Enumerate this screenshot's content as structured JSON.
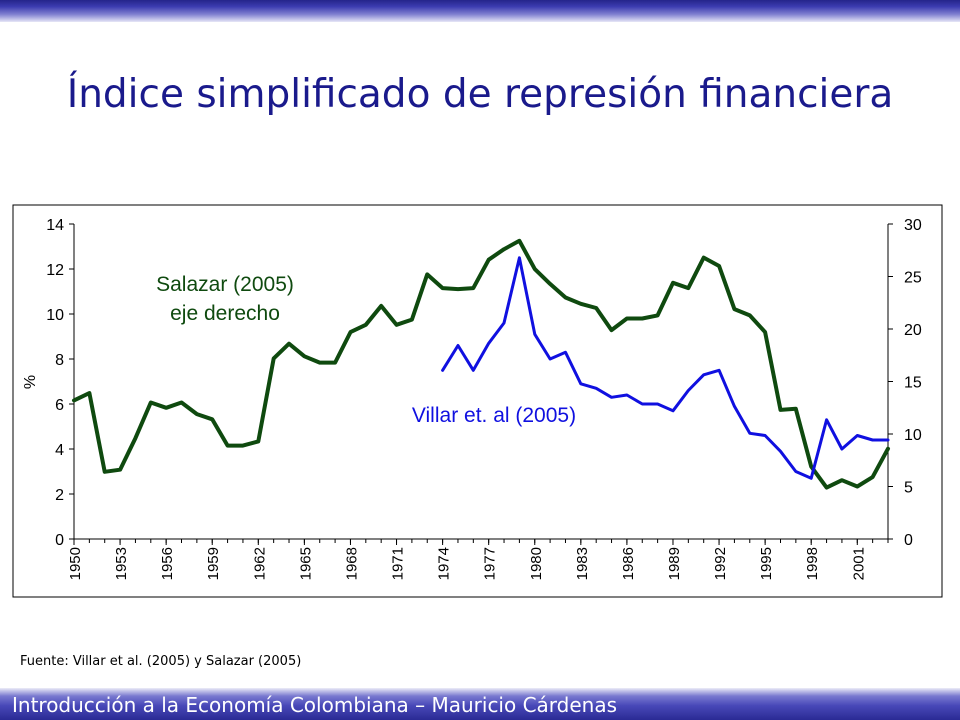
{
  "slide": {
    "title": "Índice simplificado de represión financiera",
    "source": "Fuente: Villar et al. (2005) y Salazar (2005)",
    "footer": "Introducción a la Economía Colombiana – Mauricio Cárdenas"
  },
  "colors": {
    "title": "#1a1a8c",
    "band_dark": "#2a2a94",
    "salazar_series": "#0f4a0f",
    "villar_series": "#1010e0"
  },
  "chart_data": {
    "type": "line",
    "xlabel": "",
    "ylabel": "%",
    "y_left_lim": [
      0,
      14
    ],
    "y_left_ticks": [
      0,
      2,
      4,
      6,
      8,
      10,
      12,
      14
    ],
    "y_right_lim": [
      0,
      30
    ],
    "y_right_ticks": [
      0,
      5,
      10,
      15,
      20,
      25,
      30
    ],
    "x_range": [
      1950,
      2003
    ],
    "x_ticks": [
      1950,
      1953,
      1956,
      1959,
      1962,
      1965,
      1968,
      1971,
      1974,
      1977,
      1980,
      1983,
      1986,
      1989,
      1992,
      1995,
      1998,
      2001
    ],
    "grid": false,
    "series": [
      {
        "name": "Salazar (2005) eje derecho",
        "label_lines": [
          "Salazar (2005)",
          "eje derecho"
        ],
        "axis": "right",
        "color": "#0f4a0f",
        "x": [
          1950,
          1951,
          1952,
          1953,
          1954,
          1955,
          1956,
          1957,
          1958,
          1959,
          1960,
          1961,
          1962,
          1963,
          1964,
          1965,
          1966,
          1967,
          1968,
          1969,
          1970,
          1971,
          1972,
          1973,
          1974,
          1975,
          1976,
          1977,
          1978,
          1979,
          1980,
          1981,
          1982,
          1983,
          1984,
          1985,
          1986,
          1987,
          1988,
          1989,
          1990,
          1991,
          1992,
          1993,
          1994,
          1995,
          1996,
          1997,
          1998,
          1999,
          2000,
          2001,
          2002,
          2003
        ],
        "values": [
          13.2,
          13.9,
          6.4,
          6.6,
          9.6,
          13.0,
          12.5,
          13.0,
          11.9,
          11.4,
          8.9,
          8.9,
          9.3,
          17.2,
          18.6,
          17.4,
          16.8,
          16.8,
          19.7,
          20.4,
          22.2,
          20.4,
          20.9,
          25.2,
          23.9,
          23.8,
          23.9,
          26.6,
          27.6,
          28.4,
          25.7,
          24.3,
          23.0,
          22.4,
          22.0,
          19.9,
          21.0,
          21.0,
          21.3,
          24.4,
          23.9,
          26.8,
          26.0,
          21.9,
          21.3,
          19.7,
          12.3,
          12.4,
          6.9,
          4.9,
          5.6,
          5.0,
          5.9,
          8.6
        ]
      },
      {
        "name": "Villar et. al (2005)",
        "axis": "left",
        "color": "#1010e0",
        "x": [
          1974,
          1975,
          1976,
          1977,
          1978,
          1979,
          1980,
          1981,
          1982,
          1983,
          1984,
          1985,
          1986,
          1987,
          1988,
          1989,
          1990,
          1991,
          1992,
          1993,
          1994,
          1995,
          1996,
          1997,
          1998,
          1999,
          2000,
          2001,
          2002,
          2003
        ],
        "values": [
          7.5,
          8.6,
          7.5,
          8.7,
          9.6,
          12.5,
          9.1,
          8.0,
          8.3,
          6.9,
          6.7,
          6.3,
          6.4,
          6.0,
          6.0,
          5.7,
          6.6,
          7.3,
          7.5,
          5.9,
          4.7,
          4.6,
          3.9,
          3.0,
          2.7,
          5.3,
          4.0,
          4.6,
          4.4,
          4.4
        ]
      }
    ]
  }
}
